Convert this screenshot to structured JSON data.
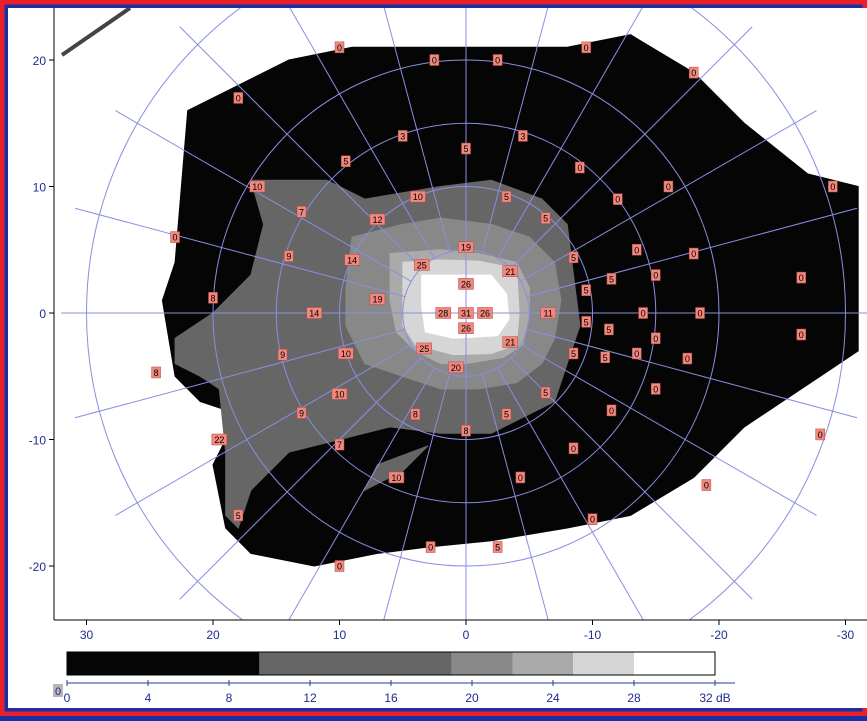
{
  "chart_data": {
    "type": "heatmap",
    "title": "",
    "xlabel": "",
    "ylabel": "",
    "xlim": [
      32.5,
      -31
    ],
    "ylim": [
      -23.5,
      24.5
    ],
    "x_ticks": [
      {
        "value": 30,
        "label": "30"
      },
      {
        "value": 20,
        "label": "20"
      },
      {
        "value": 10,
        "label": "10"
      },
      {
        "value": 0,
        "label": "0"
      },
      {
        "value": -10,
        "label": "-10"
      },
      {
        "value": -20,
        "label": "-20"
      },
      {
        "value": -30,
        "label": "-30"
      }
    ],
    "y_ticks": [
      {
        "value": 20,
        "label": "20"
      },
      {
        "value": 10,
        "label": "10"
      },
      {
        "value": 0,
        "label": "0"
      },
      {
        "value": -10,
        "label": "-10"
      },
      {
        "value": -20,
        "label": "-20"
      }
    ],
    "polar_grid": {
      "rings": [
        5,
        10,
        15,
        20,
        30
      ],
      "spoke_step_deg": 15
    },
    "grid": true,
    "regions": [
      {
        "level": "0-10 dB",
        "color": "#050505",
        "points": [
          [
            23,
            4
          ],
          [
            22,
            16
          ],
          [
            18,
            18
          ],
          [
            14,
            20
          ],
          [
            9,
            21
          ],
          [
            4,
            21
          ],
          [
            -2,
            21
          ],
          [
            -8,
            21
          ],
          [
            -13,
            22
          ],
          [
            -18,
            19
          ],
          [
            -22,
            15
          ],
          [
            -27,
            11
          ],
          [
            -31,
            10
          ],
          [
            -31,
            -3
          ],
          [
            -28,
            -5
          ],
          [
            -22,
            -9
          ],
          [
            -18,
            -13
          ],
          [
            -13,
            -16
          ],
          [
            -8,
            -17
          ],
          [
            -2,
            -18
          ],
          [
            3,
            -18.5
          ],
          [
            7,
            -19
          ],
          [
            12,
            -20
          ],
          [
            17,
            -19
          ],
          [
            19,
            -17
          ],
          [
            20,
            -12
          ],
          [
            18,
            -8
          ],
          [
            21,
            -7
          ],
          [
            23,
            -5
          ],
          [
            24,
            1
          ]
        ]
      },
      {
        "level": "10-19 dB",
        "color": "#666666",
        "points": [
          [
            17,
            10.5
          ],
          [
            14,
            10.5
          ],
          [
            11,
            10.5
          ],
          [
            8,
            9
          ],
          [
            5,
            9.5
          ],
          [
            2,
            10
          ],
          [
            -2,
            10.5
          ],
          [
            -6,
            9
          ],
          [
            -8,
            7
          ],
          [
            -8.5,
            3
          ],
          [
            -9,
            -1
          ],
          [
            -8,
            -4
          ],
          [
            -7,
            -7
          ],
          [
            -5,
            -8
          ],
          [
            -2,
            -9.5
          ],
          [
            2,
            -9.5
          ],
          [
            6,
            -9
          ],
          [
            10,
            -10
          ],
          [
            14,
            -11
          ],
          [
            17,
            -14
          ],
          [
            18,
            -17
          ],
          [
            19,
            -16
          ],
          [
            19,
            -11
          ],
          [
            19.5,
            -6
          ],
          [
            21,
            -5
          ],
          [
            23,
            -4
          ],
          [
            23,
            -2
          ],
          [
            20,
            0
          ],
          [
            17,
            3
          ],
          [
            16,
            7
          ]
        ]
      },
      {
        "level": "10-19 dB",
        "color": "#666666",
        "points": [
          [
            7,
            -12
          ],
          [
            3,
            -10.5
          ],
          [
            5,
            -12.5
          ],
          [
            8,
            -14
          ]
        ]
      },
      {
        "level": "19-22 dB",
        "color": "#888888",
        "points": [
          [
            9,
            6
          ],
          [
            5,
            7
          ],
          [
            2,
            7.5
          ],
          [
            -2,
            7
          ],
          [
            -5,
            6
          ],
          [
            -7,
            4
          ],
          [
            -7.5,
            1
          ],
          [
            -7,
            -2
          ],
          [
            -6,
            -4
          ],
          [
            -4,
            -5.5
          ],
          [
            -1,
            -6
          ],
          [
            2,
            -6
          ],
          [
            5,
            -5
          ],
          [
            8,
            -4
          ],
          [
            9.5,
            -1
          ],
          [
            9.5,
            2
          ]
        ]
      },
      {
        "level": "22-24 dB",
        "color": "#aaaaaa",
        "points": [
          [
            6,
            4.7
          ],
          [
            2,
            5
          ],
          [
            -1,
            4.7
          ],
          [
            -4,
            4
          ],
          [
            -5,
            2
          ],
          [
            -5,
            0
          ],
          [
            -4.5,
            -2.5
          ],
          [
            -3,
            -3.5
          ],
          [
            0,
            -4
          ],
          [
            2,
            -4
          ],
          [
            4,
            -3
          ],
          [
            5.5,
            -1.5
          ],
          [
            6,
            1
          ]
        ]
      },
      {
        "level": "24-28 dB",
        "color": "#d6d6d6",
        "points": [
          [
            5,
            4
          ],
          [
            2,
            4.2
          ],
          [
            -1,
            4.1
          ],
          [
            -4,
            3.5
          ],
          [
            -4.2,
            0
          ],
          [
            -4,
            -2.5
          ],
          [
            -2,
            -3.2
          ],
          [
            1,
            -3.3
          ],
          [
            4,
            -2.5
          ],
          [
            5,
            -1
          ]
        ]
      },
      {
        "level": "28-32 dB",
        "color": "#ffffff",
        "points": [
          [
            3.5,
            3
          ],
          [
            1,
            3
          ],
          [
            -2,
            3
          ],
          [
            -3.2,
            1.5
          ],
          [
            -3.4,
            -0.5
          ],
          [
            -2.5,
            -1.8
          ],
          [
            1,
            -2
          ],
          [
            3.2,
            -1.5
          ],
          [
            3.5,
            0.5
          ]
        ]
      }
    ],
    "points": [
      {
        "x": 10,
        "y": 21,
        "label": "0"
      },
      {
        "x": 2.5,
        "y": 20,
        "label": "0"
      },
      {
        "x": -2.5,
        "y": 20,
        "label": "0"
      },
      {
        "x": -9.5,
        "y": 21,
        "label": "0"
      },
      {
        "x": -18,
        "y": 19,
        "label": "0"
      },
      {
        "x": 18,
        "y": 17,
        "label": "0"
      },
      {
        "x": 5,
        "y": 14,
        "label": "3"
      },
      {
        "x": 0,
        "y": 13,
        "label": "5"
      },
      {
        "x": -4.5,
        "y": 14,
        "label": "3"
      },
      {
        "x": 9.5,
        "y": 12,
        "label": "5"
      },
      {
        "x": -9,
        "y": 11.5,
        "label": "0"
      },
      {
        "x": -16,
        "y": 10,
        "label": "0"
      },
      {
        "x": -29,
        "y": 10,
        "label": "0"
      },
      {
        "x": 16.5,
        "y": 10,
        "label": "10"
      },
      {
        "x": 3.8,
        "y": 9.2,
        "label": "10"
      },
      {
        "x": -3.2,
        "y": 9.2,
        "label": "5"
      },
      {
        "x": -12,
        "y": 9,
        "label": "0"
      },
      {
        "x": 13,
        "y": 8,
        "label": "7"
      },
      {
        "x": 7,
        "y": 7.4,
        "label": "12"
      },
      {
        "x": -6.3,
        "y": 7.5,
        "label": "5"
      },
      {
        "x": 23,
        "y": 6,
        "label": "0"
      },
      {
        "x": 0,
        "y": 5.2,
        "label": "19"
      },
      {
        "x": -13.5,
        "y": 5,
        "label": "0"
      },
      {
        "x": -18,
        "y": 4.7,
        "label": "0"
      },
      {
        "x": 14,
        "y": 4.5,
        "label": "9"
      },
      {
        "x": 9,
        "y": 4.2,
        "label": "14"
      },
      {
        "x": 3.5,
        "y": 3.8,
        "label": "25"
      },
      {
        "x": -3.5,
        "y": 3.3,
        "label": "21"
      },
      {
        "x": -8.5,
        "y": 4.4,
        "label": "5"
      },
      {
        "x": -15,
        "y": 3,
        "label": "0"
      },
      {
        "x": -11.5,
        "y": 2.7,
        "label": "5"
      },
      {
        "x": -26.5,
        "y": 2.8,
        "label": "0"
      },
      {
        "x": 0,
        "y": 2.3,
        "label": "26"
      },
      {
        "x": 7,
        "y": 1.1,
        "label": "19"
      },
      {
        "x": -9.5,
        "y": 1.8,
        "label": "5"
      },
      {
        "x": 20,
        "y": 1.2,
        "label": "8"
      },
      {
        "x": 12,
        "y": 0,
        "label": "14"
      },
      {
        "x": 1.8,
        "y": 0,
        "label": "28"
      },
      {
        "x": 0,
        "y": 0,
        "label": "31"
      },
      {
        "x": -1.5,
        "y": 0,
        "label": "26"
      },
      {
        "x": -6.5,
        "y": 0,
        "label": "11"
      },
      {
        "x": -14,
        "y": 0,
        "label": "0"
      },
      {
        "x": -18.5,
        "y": 0,
        "label": "0"
      },
      {
        "x": 0,
        "y": -1.2,
        "label": "26"
      },
      {
        "x": -9.5,
        "y": -0.7,
        "label": "5"
      },
      {
        "x": -11.3,
        "y": -1.3,
        "label": "5"
      },
      {
        "x": -15,
        "y": -2,
        "label": "0"
      },
      {
        "x": -26.5,
        "y": -1.7,
        "label": "0"
      },
      {
        "x": -3.5,
        "y": -2.3,
        "label": "21"
      },
      {
        "x": 3.3,
        "y": -2.8,
        "label": "25"
      },
      {
        "x": 9.5,
        "y": -3.2,
        "label": "10"
      },
      {
        "x": 14.5,
        "y": -3.3,
        "label": "9"
      },
      {
        "x": -8.5,
        "y": -3.2,
        "label": "5"
      },
      {
        "x": -11,
        "y": -3.5,
        "label": "5"
      },
      {
        "x": -13.5,
        "y": -3.2,
        "label": "0"
      },
      {
        "x": -17.5,
        "y": -3.6,
        "label": "0"
      },
      {
        "x": 0.8,
        "y": -4.3,
        "label": "20"
      },
      {
        "x": 24.5,
        "y": -4.7,
        "label": "8"
      },
      {
        "x": -6.3,
        "y": -6.3,
        "label": "5"
      },
      {
        "x": -15,
        "y": -6,
        "label": "0"
      },
      {
        "x": 10,
        "y": -6.4,
        "label": "10"
      },
      {
        "x": 4,
        "y": -8,
        "label": "8"
      },
      {
        "x": -3.2,
        "y": -8,
        "label": "5"
      },
      {
        "x": -11.5,
        "y": -7.7,
        "label": "0"
      },
      {
        "x": 13,
        "y": -7.9,
        "label": "9"
      },
      {
        "x": 0,
        "y": -9.3,
        "label": "8"
      },
      {
        "x": -28,
        "y": -9.6,
        "label": "0"
      },
      {
        "x": 19.5,
        "y": -10,
        "label": "22"
      },
      {
        "x": 10,
        "y": -10.4,
        "label": "7"
      },
      {
        "x": -8.5,
        "y": -10.7,
        "label": "0"
      },
      {
        "x": 5.5,
        "y": -13,
        "label": "10"
      },
      {
        "x": -4.3,
        "y": -13,
        "label": "0"
      },
      {
        "x": -19,
        "y": -13.6,
        "label": "0"
      },
      {
        "x": 18,
        "y": -16,
        "label": "5"
      },
      {
        "x": -10,
        "y": -16.3,
        "label": "0"
      },
      {
        "x": 2.8,
        "y": -18.5,
        "label": "0"
      },
      {
        "x": -2.5,
        "y": -18.5,
        "label": "5"
      },
      {
        "x": 10,
        "y": -20,
        "label": "0"
      }
    ],
    "colorbar": {
      "unit": "dB",
      "min": 0,
      "max": 32,
      "origin_label": "0",
      "ticks": [
        {
          "value": 0,
          "label": "0"
        },
        {
          "value": 4,
          "label": "4"
        },
        {
          "value": 8,
          "label": "8"
        },
        {
          "value": 12,
          "label": "12"
        },
        {
          "value": 16,
          "label": "16"
        },
        {
          "value": 20,
          "label": "20"
        },
        {
          "value": 24,
          "label": "24"
        },
        {
          "value": 28,
          "label": "28"
        },
        {
          "value": 32,
          "label": "32 dB"
        }
      ],
      "bands": [
        {
          "from": 0,
          "to": 9.5,
          "color": "#050505"
        },
        {
          "from": 9.5,
          "to": 19,
          "color": "#666666"
        },
        {
          "from": 19,
          "to": 22,
          "color": "#888888"
        },
        {
          "from": 22,
          "to": 25,
          "color": "#aaaaaa"
        },
        {
          "from": 25,
          "to": 28,
          "color": "#d6d6d6"
        },
        {
          "from": 28,
          "to": 32,
          "color": "#ffffff"
        }
      ]
    },
    "colors": {
      "frame_red": "#e8202a",
      "background_blue": "#1a2fa6",
      "grid_line": "#8a8ee0",
      "label_box": "#f2877e",
      "axis_text": "#1f2c8c"
    }
  }
}
